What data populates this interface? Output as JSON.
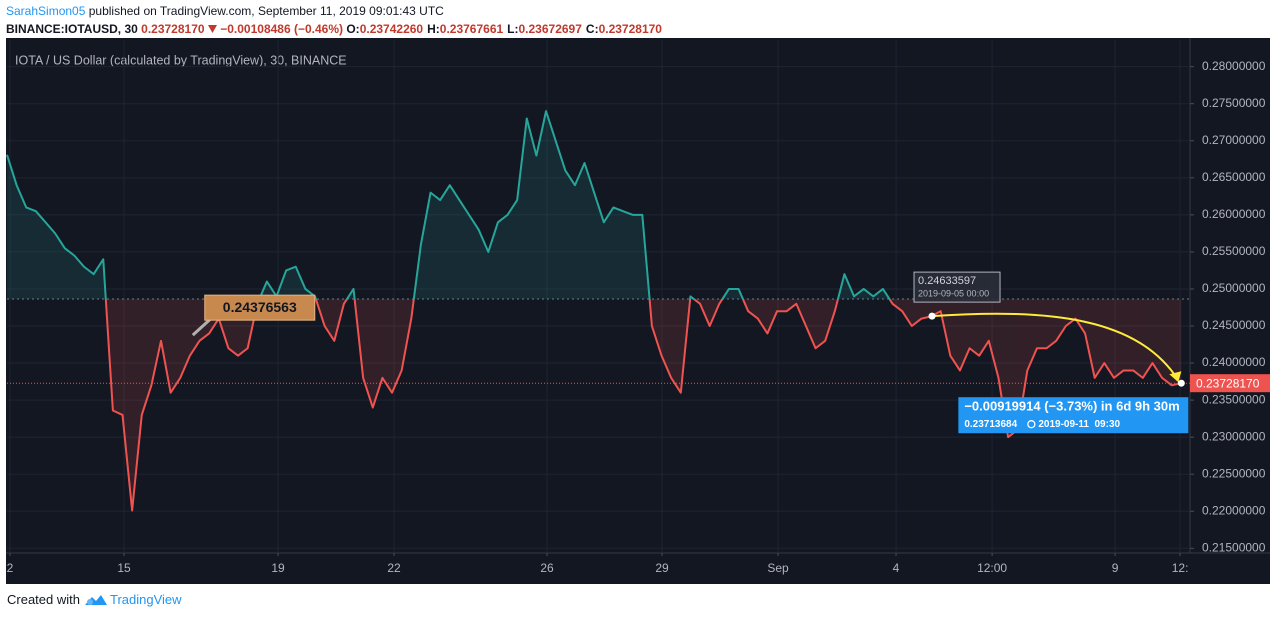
{
  "header": {
    "publisher": "SarahSimon05",
    "published": "published on TradingView.com, September 11, 2019 09:01:43 UTC",
    "symbol": "BINANCE:IOTAUSD, 30",
    "last": "0.23728170",
    "change": "−0.00108486 (−0.46%)",
    "ohlc": [
      {
        "label": "O:",
        "value": "0.23742260"
      },
      {
        "label": "H:",
        "value": "0.23767661"
      },
      {
        "label": "L:",
        "value": "0.23672697"
      },
      {
        "label": "C:",
        "value": "0.23728170"
      }
    ]
  },
  "chart_data": {
    "type": "line",
    "title": "IOTA / US Dollar (calculated by TradingView), 30, BINANCE",
    "values": [
      0.2681,
      0.264,
      0.261,
      0.2605,
      0.259,
      0.2575,
      0.2555,
      0.2545,
      0.253,
      0.252,
      0.254,
      0.2336,
      0.233,
      0.2201,
      0.233,
      0.237,
      0.243,
      0.236,
      0.238,
      0.241,
      0.243,
      0.244,
      0.246,
      0.242,
      0.241,
      0.242,
      0.248,
      0.251,
      0.249,
      0.2525,
      0.253,
      0.25,
      0.249,
      0.245,
      0.243,
      0.248,
      0.25,
      0.238,
      0.234,
      0.238,
      0.236,
      0.239,
      0.246,
      0.256,
      0.263,
      0.262,
      0.264,
      0.262,
      0.26,
      0.258,
      0.255,
      0.259,
      0.26,
      0.262,
      0.273,
      0.268,
      0.274,
      0.27,
      0.266,
      0.264,
      0.267,
      0.263,
      0.259,
      0.261,
      0.2605,
      0.26,
      0.26,
      0.245,
      0.241,
      0.238,
      0.236,
      0.249,
      0.248,
      0.245,
      0.248,
      0.25,
      0.25,
      0.247,
      0.246,
      0.244,
      0.247,
      0.247,
      0.248,
      0.245,
      0.242,
      0.243,
      0.247,
      0.252,
      0.249,
      0.25,
      0.249,
      0.25,
      0.248,
      0.247,
      0.245,
      0.246,
      0.2463,
      0.247,
      0.241,
      0.239,
      0.242,
      0.241,
      0.243,
      0.238,
      0.23,
      0.231,
      0.239,
      0.242,
      0.242,
      0.243,
      0.245,
      0.246,
      0.244,
      0.238,
      0.24,
      0.238,
      0.239,
      0.239,
      0.238,
      0.24,
      0.238,
      0.237,
      0.2372817
    ],
    "baseline": 0.24865,
    "color_above": "#26a69a",
    "color_below": "#ef5350",
    "xlim": [
      0,
      122.9
    ],
    "xticks": [
      {
        "value": 0.31,
        "label": "2"
      },
      {
        "value": 12.16,
        "label": "15"
      },
      {
        "value": 28.16,
        "label": "19"
      },
      {
        "value": 40.21,
        "label": "22"
      },
      {
        "value": 56.1,
        "label": "26"
      },
      {
        "value": 68.05,
        "label": "29"
      },
      {
        "value": 80.1,
        "label": "Sep"
      },
      {
        "value": 92.36,
        "label": "4"
      },
      {
        "value": 102.34,
        "label": "12:00"
      },
      {
        "value": 115.12,
        "label": "9"
      },
      {
        "value": 121.87,
        "label": "12:"
      }
    ],
    "ylim": [
      0.2145,
      0.2836
    ],
    "yticks": [
      {
        "value": 0.215,
        "label": "0.21500000"
      },
      {
        "value": 0.22,
        "label": "0.22000000"
      },
      {
        "value": 0.225,
        "label": "0.22500000"
      },
      {
        "value": 0.23,
        "label": "0.23000000"
      },
      {
        "value": 0.235,
        "label": "0.23500000"
      },
      {
        "value": 0.24,
        "label": "0.24000000"
      },
      {
        "value": 0.245,
        "label": "0.24500000"
      },
      {
        "value": 0.25,
        "label": "0.25000000"
      },
      {
        "value": 0.255,
        "label": "0.25500000"
      },
      {
        "value": 0.26,
        "label": "0.26000000"
      },
      {
        "value": 0.265,
        "label": "0.26500000"
      },
      {
        "value": 0.27,
        "label": "0.27000000"
      },
      {
        "value": 0.275,
        "label": "0.27500000"
      },
      {
        "value": 0.28,
        "label": "0.28000000"
      }
    ],
    "grid": true,
    "last": {
      "value": 0.2372817,
      "label": "0.23728170"
    },
    "callout": {
      "x": 19.3,
      "value": 0.24376563,
      "label": "0.24376563"
    },
    "tooltip": {
      "x": 96.1,
      "value": 0.24633597,
      "label": "0.24633597",
      "date": "2019-09-05 00:00"
    },
    "measure": {
      "text": "−0.00919914 (−3.73%) in 6d 9h 30m",
      "price": "0.23713684",
      "date": "2019-09-11  09:30"
    }
  },
  "footer": {
    "text": "Created with",
    "brand": "TradingView"
  }
}
